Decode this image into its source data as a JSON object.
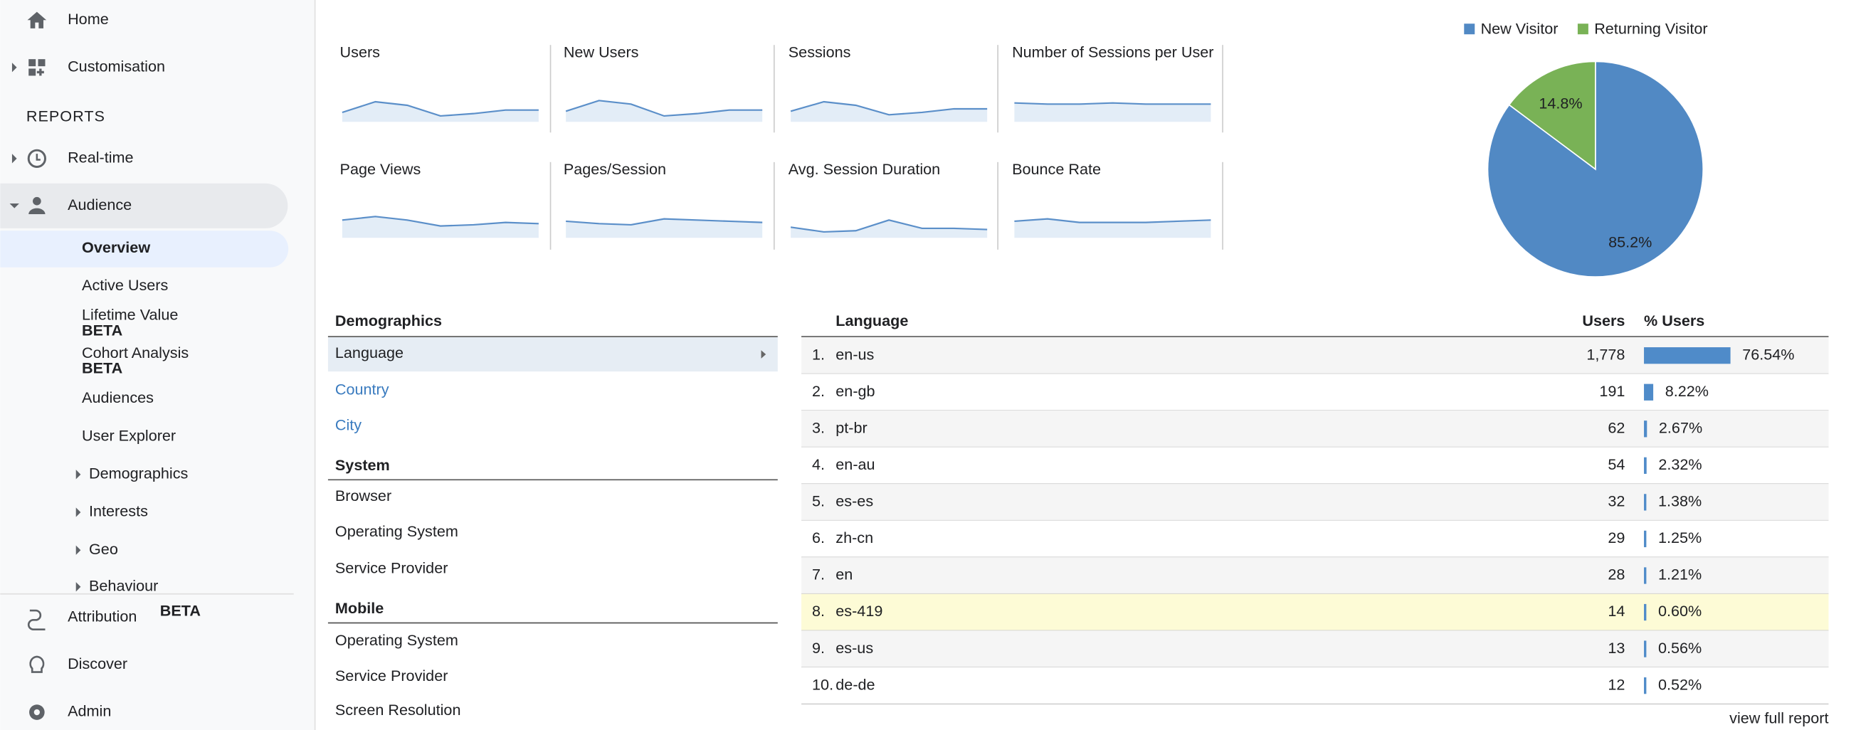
{
  "sidebar": {
    "top": [
      "Home",
      "Customisation"
    ],
    "section": "REPORTS",
    "reports": [
      "Real-time",
      "Audience"
    ],
    "audience_items": [
      "Overview",
      "Active Users",
      "Lifetime Value",
      "Cohort Analysis",
      "Audiences",
      "User Explorer",
      "Demographics",
      "Interests",
      "Geo",
      "Behaviour"
    ],
    "beta": "BETA",
    "bottom": [
      "Attribution",
      "Discover",
      "Admin"
    ]
  },
  "metrics": [
    "Users",
    "New Users",
    "Sessions",
    "Number of Sessions per User",
    "Page Views",
    "Pages/Session",
    "Avg. Session Duration",
    "Bounce Rate"
  ],
  "pie": {
    "legend": [
      "New Visitor",
      "Returning Visitor"
    ],
    "colors": [
      "#5189c4",
      "#79b256"
    ],
    "values": [
      85.2,
      14.8
    ],
    "value_labels": [
      "85.2%",
      "14.8%"
    ]
  },
  "demographics": {
    "title": "Demographics",
    "items": [
      "Language",
      "Country",
      "City"
    ],
    "system_title": "System",
    "system": [
      "Browser",
      "Operating System",
      "Service Provider"
    ],
    "mobile_title": "Mobile",
    "mobile": [
      "Operating System",
      "Service Provider",
      "Screen Resolution"
    ]
  },
  "language_table": {
    "headers": [
      "Language",
      "Users",
      "% Users"
    ],
    "rows": [
      {
        "rank": "1.",
        "language": "en-us",
        "users": "1,778",
        "pct": 76.54,
        "pct_label": "76.54%"
      },
      {
        "rank": "2.",
        "language": "en-gb",
        "users": "191",
        "pct": 8.22,
        "pct_label": "8.22%"
      },
      {
        "rank": "3.",
        "language": "pt-br",
        "users": "62",
        "pct": 2.67,
        "pct_label": "2.67%"
      },
      {
        "rank": "4.",
        "language": "en-au",
        "users": "54",
        "pct": 2.32,
        "pct_label": "2.32%"
      },
      {
        "rank": "5.",
        "language": "es-es",
        "users": "32",
        "pct": 1.38,
        "pct_label": "1.38%"
      },
      {
        "rank": "6.",
        "language": "zh-cn",
        "users": "29",
        "pct": 1.25,
        "pct_label": "1.25%"
      },
      {
        "rank": "7.",
        "language": "en",
        "users": "28",
        "pct": 1.21,
        "pct_label": "1.21%"
      },
      {
        "rank": "8.",
        "language": "es-419",
        "users": "14",
        "pct": 0.6,
        "pct_label": "0.60%"
      },
      {
        "rank": "9.",
        "language": "es-us",
        "users": "13",
        "pct": 0.56,
        "pct_label": "0.56%"
      },
      {
        "rank": "10.",
        "language": "de-de",
        "users": "12",
        "pct": 0.52,
        "pct_label": "0.52%"
      }
    ],
    "more": "view full report"
  }
}
